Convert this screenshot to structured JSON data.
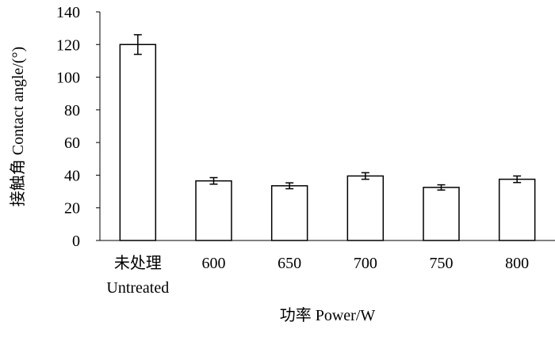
{
  "chart_data": {
    "type": "bar",
    "categories": [
      [
        "未处理",
        "Untreated"
      ],
      [
        "600"
      ],
      [
        "650"
      ],
      [
        "700"
      ],
      [
        "750"
      ],
      [
        "800"
      ]
    ],
    "values": [
      120,
      36.5,
      33.5,
      39.5,
      32.5,
      37.5
    ],
    "errors": [
      6,
      2,
      1.8,
      2,
      1.6,
      2
    ],
    "xlabel": "功率 Power/W",
    "ylabel": "接触角 Contact angle/(°)",
    "ylim": [
      0,
      140
    ],
    "yticks": [
      0,
      20,
      40,
      60,
      80,
      100,
      120,
      140
    ],
    "bar_fill": "#ffffff",
    "bar_stroke": "#000000",
    "grid": false,
    "legend": "none"
  }
}
